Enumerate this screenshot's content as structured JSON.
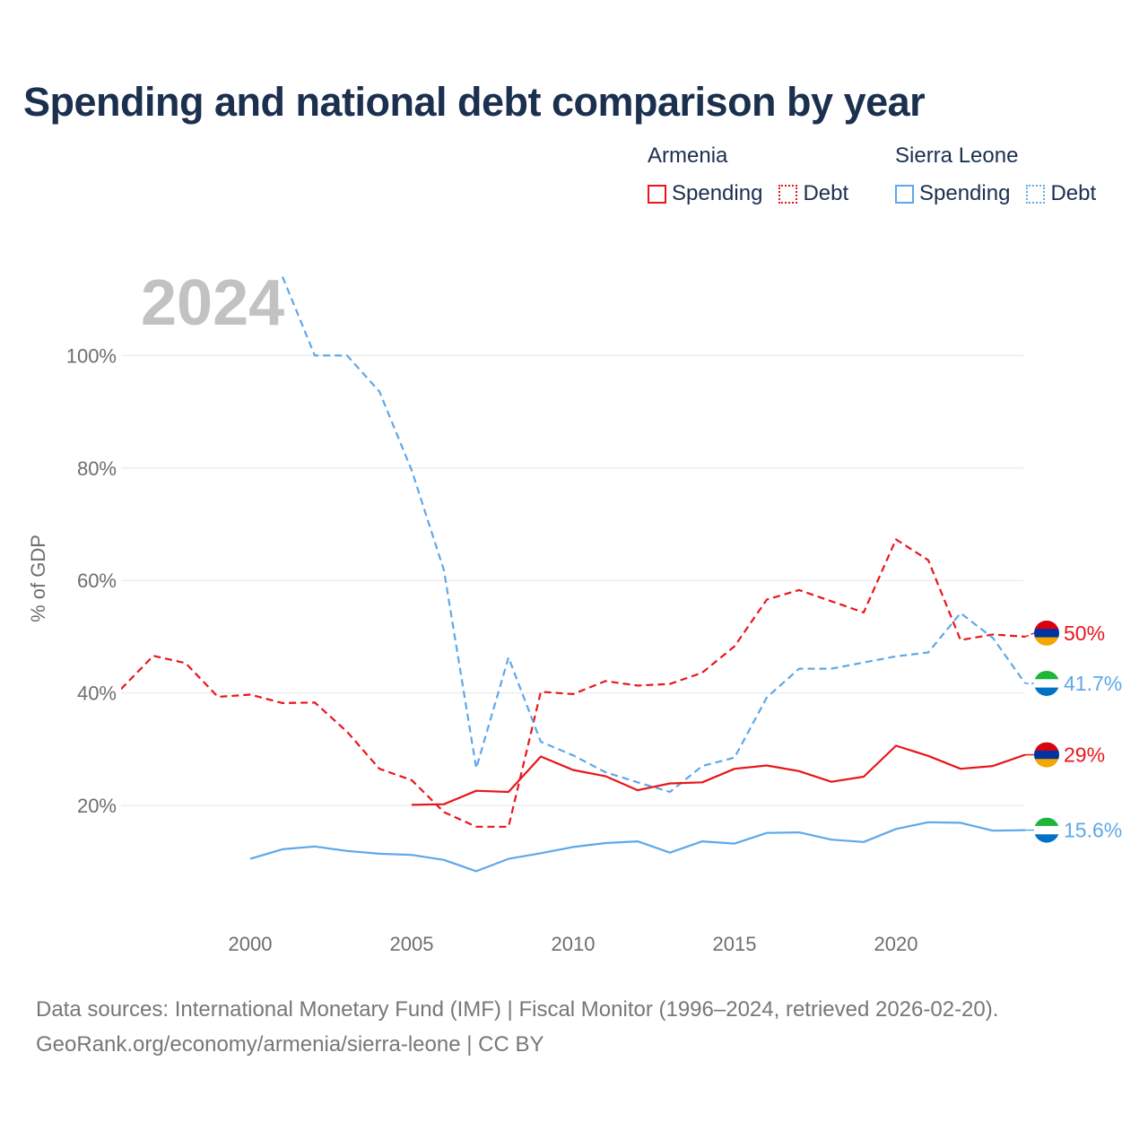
{
  "title": "Spending and national debt comparison by year",
  "legend": {
    "groups": [
      {
        "name": "Armenia",
        "color": "#e8161b",
        "items": [
          {
            "label": "Spending",
            "style": "solid"
          },
          {
            "label": "Debt",
            "style": "dotted"
          }
        ]
      },
      {
        "name": "Sierra Leone",
        "color": "#5ea8e8",
        "items": [
          {
            "label": "Spending",
            "style": "solid"
          },
          {
            "label": "Debt",
            "style": "dotted"
          }
        ]
      }
    ]
  },
  "sources": {
    "line1": "Data sources: International Monetary Fund (IMF) | Fiscal Monitor (1996–2024, retrieved 2026-02-20).",
    "line2": "GeoRank.org/economy/armenia/sierra-leone | CC BY"
  },
  "chart_data": {
    "type": "line",
    "title": "Spending and national debt comparison by year",
    "year_label": "2024",
    "xlabel": "",
    "ylabel": "% of GDP",
    "xlim": [
      1996,
      2024
    ],
    "ylim": [
      0,
      115
    ],
    "x_ticks": [
      2000,
      2005,
      2010,
      2015,
      2020
    ],
    "y_ticks": [
      20,
      40,
      60,
      80,
      100
    ],
    "y_tick_labels": [
      "20%",
      "40%",
      "60%",
      "80%",
      "100%"
    ],
    "grid": true,
    "series": [
      {
        "name": "Armenia Debt",
        "country": "Armenia",
        "metric": "Debt",
        "color": "#e8161b",
        "dashed": true,
        "end_label": "50%",
        "x": [
          1996,
          1997,
          1998,
          1999,
          2000,
          2001,
          2002,
          2003,
          2004,
          2005,
          2006,
          2007,
          2008,
          2009,
          2010,
          2011,
          2012,
          2013,
          2014,
          2015,
          2016,
          2017,
          2018,
          2019,
          2020,
          2021,
          2022,
          2023,
          2024
        ],
        "y": [
          40.7,
          46.6,
          45.3,
          39.3,
          39.7,
          38.2,
          38.3,
          33.1,
          26.5,
          24.5,
          18.8,
          16.2,
          16.2,
          40.2,
          39.8,
          42.1,
          41.3,
          41.6,
          43.6,
          48.3,
          56.6,
          58.3,
          56.3,
          54.3,
          67.3,
          63.6,
          49.4,
          50.4,
          50.0
        ]
      },
      {
        "name": "Sierra Leone Debt",
        "country": "Sierra Leone",
        "metric": "Debt",
        "color": "#5ea8e8",
        "dashed": true,
        "end_label": "41.7%",
        "x": [
          2001,
          2002,
          2003,
          2004,
          2005,
          2006,
          2007,
          2008,
          2009,
          2010,
          2011,
          2012,
          2013,
          2014,
          2015,
          2016,
          2017,
          2018,
          2019,
          2020,
          2021,
          2022,
          2023,
          2024
        ],
        "y": [
          114.0,
          100.0,
          100.0,
          93.6,
          79.6,
          61.8,
          26.6,
          46.3,
          31.3,
          28.9,
          25.9,
          24.1,
          22.4,
          27.0,
          28.5,
          39.2,
          44.3,
          44.3,
          45.4,
          46.5,
          47.2,
          54.2,
          49.8,
          41.7
        ]
      },
      {
        "name": "Armenia Spending",
        "country": "Armenia",
        "metric": "Spending",
        "color": "#e8161b",
        "dashed": false,
        "end_label": "29%",
        "x": [
          2005,
          2006,
          2007,
          2008,
          2009,
          2010,
          2011,
          2012,
          2013,
          2014,
          2015,
          2016,
          2017,
          2018,
          2019,
          2020,
          2021,
          2022,
          2023,
          2024
        ],
        "y": [
          20.1,
          20.2,
          22.6,
          22.4,
          28.7,
          26.3,
          25.2,
          22.7,
          23.9,
          24.1,
          26.5,
          27.1,
          26.1,
          24.2,
          25.1,
          30.6,
          28.8,
          26.5,
          27.0,
          29.0
        ]
      },
      {
        "name": "Sierra Leone Spending",
        "country": "Sierra Leone",
        "metric": "Spending",
        "color": "#5ea8e8",
        "dashed": false,
        "end_label": "15.6%",
        "x": [
          2000,
          2001,
          2002,
          2003,
          2004,
          2005,
          2006,
          2007,
          2008,
          2009,
          2010,
          2011,
          2012,
          2013,
          2014,
          2015,
          2016,
          2017,
          2018,
          2019,
          2020,
          2021,
          2022,
          2023,
          2024
        ],
        "y": [
          10.5,
          12.2,
          12.7,
          11.9,
          11.4,
          11.2,
          10.3,
          8.3,
          10.5,
          11.5,
          12.6,
          13.3,
          13.6,
          11.6,
          13.6,
          13.2,
          15.1,
          15.2,
          13.9,
          13.5,
          15.8,
          17.0,
          16.9,
          15.5,
          15.6
        ]
      }
    ]
  }
}
